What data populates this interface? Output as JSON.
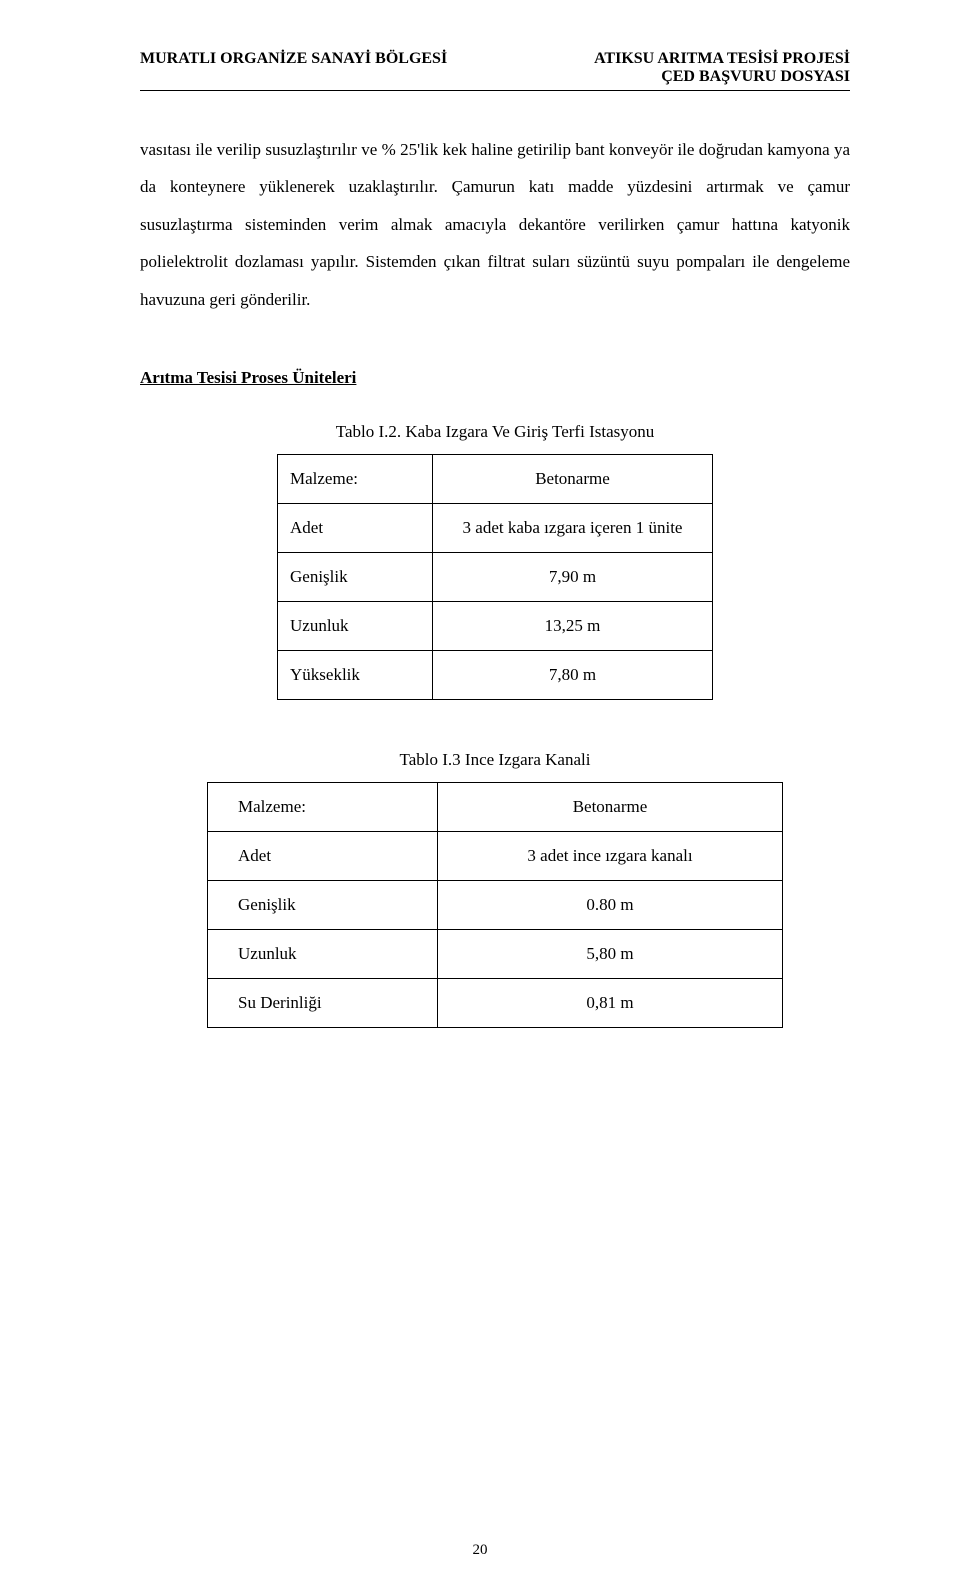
{
  "header": {
    "left": "MURATLI ORGANİZE SANAYİ BÖLGESİ",
    "right_line1": "ATIKSU ARITMA TESİSİ PROJESİ",
    "right_line2": "ÇED BAŞVURU DOSYASI"
  },
  "paragraph": "vasıtası ile verilip susuzlaştırılır ve % 25'lik kek haline getirilip bant konveyör ile doğrudan kamyona ya da konteynere  yüklenerek uzaklaştırılır. Çamurun katı madde yüzdesini artırmak ve çamur susuzlaştırma sisteminden verim almak amacıyla dekantöre verilirken çamur hattına katyonik  polielektrolit dozlaması yapılır. Sistemden çıkan filtrat suları süzüntü suyu pompaları ile dengeleme havuzuna geri gönderilir.",
  "section_title": "Arıtma Tesisi Proses Üniteleri",
  "table1": {
    "caption": "Tablo I.2. Kaba Izgara Ve Giriş Terfi Istasyonu",
    "rows": [
      {
        "label": "Malzeme:",
        "value": "Betonarme"
      },
      {
        "label": "Adet",
        "value": "3 adet kaba ızgara içeren 1 ünite"
      },
      {
        "label": "Genişlik",
        "value": "7,90 m"
      },
      {
        "label": "Uzunluk",
        "value": "13,25 m"
      },
      {
        "label": "Yükseklik",
        "value": "7,80 m"
      }
    ]
  },
  "table2": {
    "caption": "Tablo I.3 Ince Izgara Kanali",
    "rows": [
      {
        "label": "Malzeme:",
        "value": "Betonarme"
      },
      {
        "label": "Adet",
        "value": "3 adet ince ızgara kanalı"
      },
      {
        "label": "Genişlik",
        "value": "0.80 m"
      },
      {
        "label": "Uzunluk",
        "value": "5,80 m"
      },
      {
        "label": "Su Derinliği",
        "value": "0,81 m"
      }
    ]
  },
  "page_number": "20",
  "colors": {
    "text": "#000000",
    "background": "#ffffff",
    "rule": "#000000",
    "table_border": "#000000"
  },
  "fonts": {
    "body_family": "Times New Roman",
    "body_size_pt": 12,
    "header_size_pt": 12,
    "header_weight": "bold"
  }
}
